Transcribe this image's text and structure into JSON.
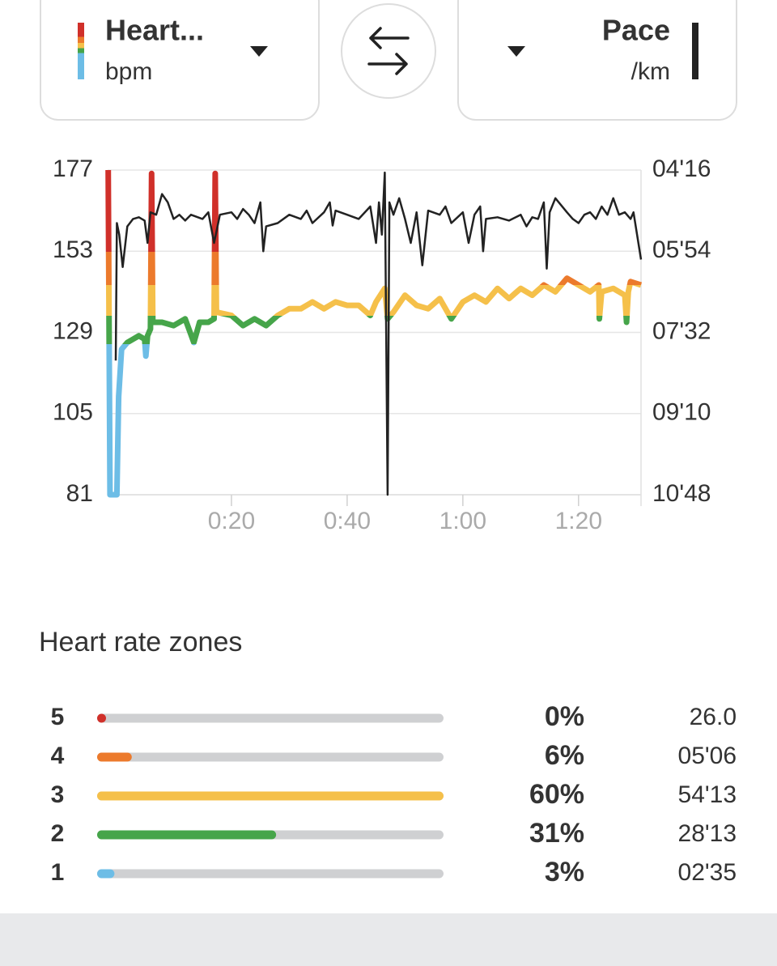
{
  "header": {
    "left": {
      "title": "Heart...",
      "unit": "bpm"
    },
    "right": {
      "title": "Pace",
      "unit": "/km"
    }
  },
  "chart_data": [
    {
      "type": "line",
      "xlim": [
        -1.4,
        90.8
      ],
      "xticks": [
        {
          "value": 20,
          "label": "0:20"
        },
        {
          "value": 40,
          "label": "0:40"
        },
        {
          "value": 60,
          "label": "1:00"
        },
        {
          "value": 80,
          "label": "1:20"
        }
      ],
      "ylim": [
        81,
        177
      ],
      "yticks": [
        81,
        105,
        129,
        153,
        177
      ],
      "y2lim": [
        648,
        256
      ],
      "y2ticks": [
        {
          "value": 256,
          "label": "04'16"
        },
        {
          "value": 354,
          "label": "05'54"
        },
        {
          "value": 452,
          "label": "07'32"
        },
        {
          "value": 550,
          "label": "09'10"
        },
        {
          "value": 648,
          "label": "10'48"
        }
      ],
      "grid": true,
      "series": [
        {
          "x": [
            -1.3,
            -1.0,
            0.2,
            0.5,
            1,
            2,
            3,
            4,
            5,
            5.2,
            5.5,
            6,
            6.2,
            6.4,
            8,
            10,
            12,
            13.5,
            14.5,
            16,
            17,
            17.2,
            17.4,
            20,
            22,
            24,
            26,
            28,
            30,
            32,
            34,
            36,
            38,
            40,
            42,
            44,
            45,
            46.5,
            47,
            48,
            50,
            52,
            54,
            56,
            58,
            60,
            62,
            64,
            66,
            68,
            70,
            72,
            74,
            76,
            78,
            80,
            82,
            83.5,
            83.6,
            84,
            86,
            88,
            88.3,
            88.6,
            89,
            90.8
          ],
          "values": [
            177,
            81,
            81,
            110,
            124,
            126,
            127,
            128,
            127,
            122,
            128,
            130,
            176,
            132,
            132,
            131,
            133,
            126,
            132,
            132,
            133,
            176,
            135,
            134,
            131,
            133,
            131,
            134,
            136,
            136,
            138,
            136,
            138,
            137,
            137,
            134,
            138,
            142,
            133,
            135,
            140,
            137,
            136,
            139,
            133,
            138,
            140,
            138,
            142,
            139,
            142,
            140,
            143,
            141,
            145,
            143,
            141,
            143,
            133,
            141,
            142,
            140,
            132,
            141,
            144,
            143
          ]
        },
        {
          "axis": "y2",
          "color": "#222222",
          "x": [
            0,
            0.2,
            0.6,
            1.2,
            2,
            3,
            4,
            5,
            5.5,
            6,
            7,
            8,
            9,
            10,
            11,
            12,
            13,
            15,
            16,
            17,
            18,
            20,
            21,
            22,
            23,
            24,
            25,
            25.5,
            26,
            28,
            30,
            32,
            33,
            34,
            36,
            37,
            37.5,
            38,
            40,
            42,
            44,
            45,
            45.5,
            46,
            46.5,
            47,
            47.3,
            48,
            49,
            50,
            51,
            52,
            53,
            54,
            56,
            57,
            58,
            60,
            61,
            62,
            63,
            63.5,
            64,
            66,
            68,
            70,
            71,
            72,
            73,
            74,
            74.5,
            75,
            76,
            78,
            79,
            80,
            81,
            82,
            83,
            84,
            85,
            86,
            87,
            88,
            89,
            89.5,
            90.8
          ],
          "values": [
            486,
            320,
            334,
            373,
            324,
            315,
            313,
            317,
            344,
            307,
            310,
            285,
            295,
            315,
            310,
            317,
            310,
            315,
            307,
            344,
            310,
            307,
            315,
            303,
            310,
            320,
            295,
            354,
            324,
            320,
            310,
            315,
            305,
            320,
            307,
            295,
            323,
            305,
            310,
            315,
            300,
            344,
            295,
            334,
            259,
            648,
            295,
            310,
            290,
            315,
            344,
            307,
            371,
            305,
            310,
            300,
            320,
            307,
            344,
            310,
            300,
            354,
            315,
            313,
            317,
            310,
            324,
            313,
            315,
            295,
            375,
            307,
            290,
            307,
            315,
            320,
            310,
            307,
            315,
            300,
            310,
            290,
            310,
            307,
            315,
            307,
            364
          ]
        }
      ]
    },
    {
      "type": "bar",
      "title": "Heart rate zones",
      "categories": [
        "5",
        "4",
        "3",
        "2",
        "1"
      ],
      "colors": [
        "#d0302a",
        "#ec7a2c",
        "#f5c04a",
        "#46a54a",
        "#6dbde6"
      ],
      "values": [
        0,
        6,
        60,
        31,
        3
      ],
      "value_labels": [
        "0%",
        "6%",
        "60%",
        "31%",
        "3%"
      ],
      "durations": [
        "26.0",
        "05'06",
        "54'13",
        "28'13",
        "02'35"
      ]
    }
  ]
}
